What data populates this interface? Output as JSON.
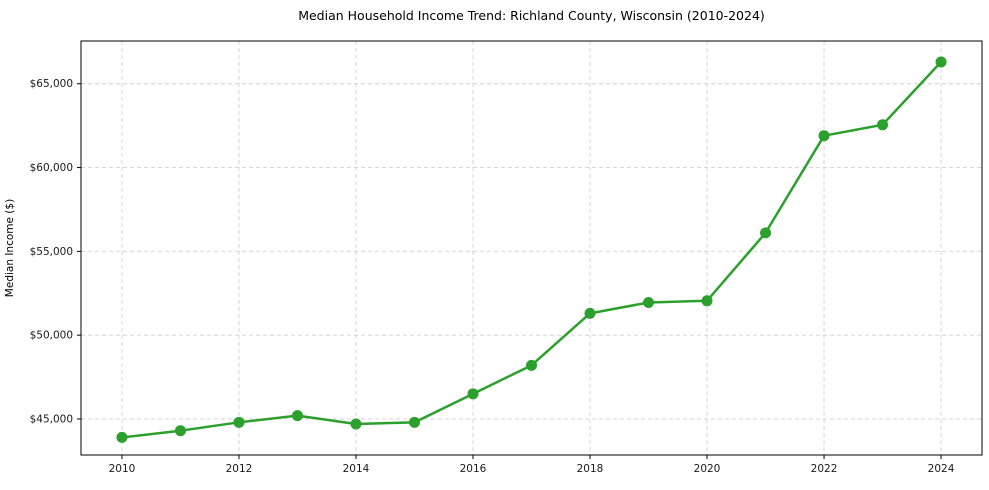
{
  "figure": {
    "background_color": "#ffffff"
  },
  "chart_data": {
    "type": "line",
    "title": "Median Household Income Trend: Richland County, Wisconsin (2010-2024)",
    "xlabel": "",
    "ylabel": "Median Income ($)",
    "x": [
      2010,
      2011,
      2012,
      2013,
      2014,
      2015,
      2016,
      2017,
      2018,
      2019,
      2020,
      2021,
      2022,
      2023,
      2024
    ],
    "series": [
      {
        "name": "Median household income",
        "values": [
          43900,
          44300,
          44800,
          45200,
          44700,
          44800,
          46500,
          48200,
          51300,
          51950,
          52050,
          56100,
          61900,
          62550,
          66300
        ]
      }
    ],
    "xlim": [
      2009.3,
      2024.7
    ],
    "ylim": [
      42850,
      67550
    ],
    "x_ticks": [
      2010,
      2012,
      2014,
      2016,
      2018,
      2020,
      2022,
      2024
    ],
    "x_tick_labels": [
      "2010",
      "2012",
      "2014",
      "2016",
      "2018",
      "2020",
      "2022",
      "2024"
    ],
    "y_ticks": [
      45000,
      50000,
      55000,
      60000,
      65000
    ],
    "y_tick_labels": [
      "$45,000",
      "$50,000",
      "$55,000",
      "$60,000",
      "$65,000"
    ],
    "grid": true,
    "grid_style": "dashed",
    "legend": "none",
    "line_color": "#2ca02c",
    "marker": "circle",
    "grid_color": "#d0d0d0",
    "axis_color": "#000000"
  }
}
